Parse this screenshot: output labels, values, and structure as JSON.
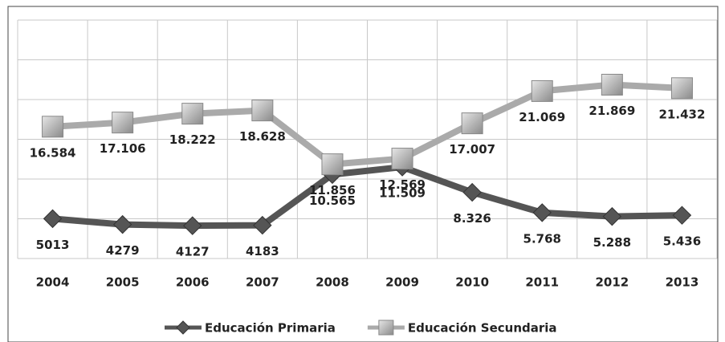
{
  "chart_data": {
    "type": "line",
    "categories": [
      "2004",
      "2005",
      "2006",
      "2007",
      "2008",
      "2009",
      "2010",
      "2011",
      "2012",
      "2013"
    ],
    "series": [
      {
        "name": "Educación Primaria",
        "color": "#555555",
        "marker": "diamond",
        "values": [
          5013,
          4279,
          4127,
          4183,
          10565,
          11509,
          8326,
          5768,
          5288,
          5436
        ],
        "value_labels": [
          "5013",
          "4279",
          "4127",
          "4183",
          "10.565",
          "11.509",
          "8.326",
          "5.768",
          "5.288",
          "5.436"
        ]
      },
      {
        "name": "Educación Secundaria",
        "color": "#aaaaaa",
        "marker": "square",
        "values": [
          16584,
          17106,
          18222,
          18628,
          11856,
          12569,
          17007,
          21069,
          21869,
          21432
        ],
        "value_labels": [
          "16.584",
          "17.106",
          "18.222",
          "18.628",
          "11.856",
          "12.569",
          "17.007",
          "21.069",
          "21.869",
          "21.432"
        ]
      }
    ],
    "ylim": [
      0,
      30000
    ],
    "yticks": [
      0,
      5000,
      10000,
      15000,
      20000,
      25000,
      30000
    ],
    "grid": true,
    "legend": "bottom"
  }
}
